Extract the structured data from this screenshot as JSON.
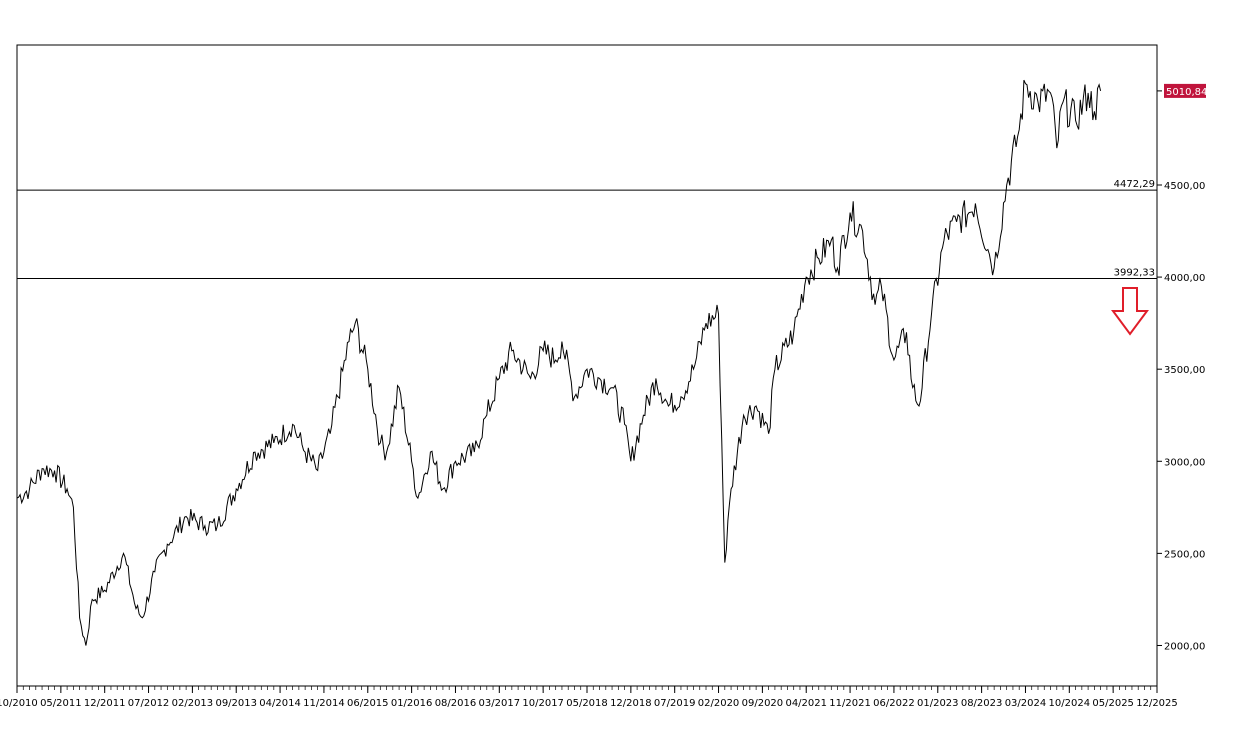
{
  "chart_data": {
    "type": "line",
    "title": "",
    "xlabel": "",
    "ylabel": "",
    "x_range": [
      "10/2010",
      "12/2025"
    ],
    "ylim": [
      1780,
      5260
    ],
    "y_ticks": [
      2000,
      2500,
      3000,
      3500,
      4000,
      4500
    ],
    "y_tick_labels": [
      "2000,00",
      "2500,00",
      "3000,00",
      "3500,00",
      "4000,00",
      "4500,00"
    ],
    "x_ticks": [
      {
        "label": "10/2010",
        "year": 2010,
        "month": 10
      },
      {
        "label": "05/2011",
        "year": 2011,
        "month": 5
      },
      {
        "label": "12/2011",
        "year": 2011,
        "month": 12
      },
      {
        "label": "07/2012",
        "year": 2012,
        "month": 7
      },
      {
        "label": "02/2013",
        "year": 2013,
        "month": 2
      },
      {
        "label": "09/2013",
        "year": 2013,
        "month": 9
      },
      {
        "label": "04/2014",
        "year": 2014,
        "month": 4
      },
      {
        "label": "11/2014",
        "year": 2014,
        "month": 11
      },
      {
        "label": "06/2015",
        "year": 2015,
        "month": 6
      },
      {
        "label": "01/2016",
        "year": 2016,
        "month": 1
      },
      {
        "label": "08/2016",
        "year": 2016,
        "month": 8
      },
      {
        "label": "03/2017",
        "year": 2017,
        "month": 3
      },
      {
        "label": "10/2017",
        "year": 2017,
        "month": 10
      },
      {
        "label": "05/2018",
        "year": 2018,
        "month": 5
      },
      {
        "label": "12/2018",
        "year": 2018,
        "month": 12
      },
      {
        "label": "07/2019",
        "year": 2019,
        "month": 7
      },
      {
        "label": "02/2020",
        "year": 2020,
        "month": 2
      },
      {
        "label": "09/2020",
        "year": 2020,
        "month": 9
      },
      {
        "label": "04/2021",
        "year": 2021,
        "month": 4
      },
      {
        "label": "11/2021",
        "year": 2021,
        "month": 11
      },
      {
        "label": "06/2022",
        "year": 2022,
        "month": 6
      },
      {
        "label": "01/2023",
        "year": 2023,
        "month": 1
      },
      {
        "label": "08/2023",
        "year": 2023,
        "month": 8
      },
      {
        "label": "03/2024",
        "year": 2024,
        "month": 3
      },
      {
        "label": "10/2024",
        "year": 2024,
        "month": 10
      },
      {
        "label": "05/2025",
        "year": 2025,
        "month": 5
      },
      {
        "label": "12/2025",
        "year": 2025,
        "month": 12
      }
    ],
    "series": [
      {
        "values": [
          {
            "d": "2010-10",
            "v": 2800
          },
          {
            "d": "2010-12",
            "v": 2850
          },
          {
            "d": "2011-02",
            "v": 2960
          },
          {
            "d": "2011-04",
            "v": 2950
          },
          {
            "d": "2011-06",
            "v": 2850
          },
          {
            "d": "2011-07",
            "v": 2750
          },
          {
            "d": "2011-08",
            "v": 2150
          },
          {
            "d": "2011-09",
            "v": 2000
          },
          {
            "d": "2011-10",
            "v": 2250
          },
          {
            "d": "2011-12",
            "v": 2300
          },
          {
            "d": "2012-03",
            "v": 2500
          },
          {
            "d": "2012-05",
            "v": 2200
          },
          {
            "d": "2012-06",
            "v": 2150
          },
          {
            "d": "2012-08",
            "v": 2400
          },
          {
            "d": "2012-10",
            "v": 2550
          },
          {
            "d": "2013-01",
            "v": 2700
          },
          {
            "d": "2013-04",
            "v": 2650
          },
          {
            "d": "2013-06",
            "v": 2650
          },
          {
            "d": "2013-09",
            "v": 2850
          },
          {
            "d": "2013-12",
            "v": 3050
          },
          {
            "d": "2014-03",
            "v": 3100
          },
          {
            "d": "2014-06",
            "v": 3200
          },
          {
            "d": "2014-08",
            "v": 3050
          },
          {
            "d": "2014-10",
            "v": 2950
          },
          {
            "d": "2014-12",
            "v": 3150
          },
          {
            "d": "2015-03",
            "v": 3650
          },
          {
            "d": "2015-04",
            "v": 3750
          },
          {
            "d": "2015-06",
            "v": 3500
          },
          {
            "d": "2015-08",
            "v": 3100
          },
          {
            "d": "2015-09",
            "v": 3050
          },
          {
            "d": "2015-11",
            "v": 3400
          },
          {
            "d": "2016-01",
            "v": 3000
          },
          {
            "d": "2016-02",
            "v": 2800
          },
          {
            "d": "2016-04",
            "v": 3050
          },
          {
            "d": "2016-06",
            "v": 2850
          },
          {
            "d": "2016-08",
            "v": 3000
          },
          {
            "d": "2016-11",
            "v": 3050
          },
          {
            "d": "2017-01",
            "v": 3250
          },
          {
            "d": "2017-03",
            "v": 3450
          },
          {
            "d": "2017-05",
            "v": 3600
          },
          {
            "d": "2017-08",
            "v": 3450
          },
          {
            "d": "2017-10",
            "v": 3600
          },
          {
            "d": "2017-12",
            "v": 3550
          },
          {
            "d": "2018-01",
            "v": 3650
          },
          {
            "d": "2018-03",
            "v": 3350
          },
          {
            "d": "2018-05",
            "v": 3500
          },
          {
            "d": "2018-07",
            "v": 3450
          },
          {
            "d": "2018-09",
            "v": 3400
          },
          {
            "d": "2018-11",
            "v": 3200
          },
          {
            "d": "2018-12",
            "v": 3000
          },
          {
            "d": "2019-02",
            "v": 3250
          },
          {
            "d": "2019-04",
            "v": 3450
          },
          {
            "d": "2019-06",
            "v": 3300
          },
          {
            "d": "2019-08",
            "v": 3350
          },
          {
            "d": "2019-10",
            "v": 3500
          },
          {
            "d": "2019-12",
            "v": 3750
          },
          {
            "d": "2020-02",
            "v": 3800
          },
          {
            "d": "2020-03",
            "v": 2450
          },
          {
            "d": "2020-04",
            "v": 2850
          },
          {
            "d": "2020-06",
            "v": 3250
          },
          {
            "d": "2020-08",
            "v": 3300
          },
          {
            "d": "2020-10",
            "v": 3150
          },
          {
            "d": "2020-11",
            "v": 3500
          },
          {
            "d": "2021-02",
            "v": 3700
          },
          {
            "d": "2021-04",
            "v": 4000
          },
          {
            "d": "2021-06",
            "v": 4100
          },
          {
            "d": "2021-08",
            "v": 4200
          },
          {
            "d": "2021-09",
            "v": 4050
          },
          {
            "d": "2021-11",
            "v": 4350
          },
          {
            "d": "2022-01",
            "v": 4250
          },
          {
            "d": "2022-03",
            "v": 3850
          },
          {
            "d": "2022-04",
            "v": 3950
          },
          {
            "d": "2022-06",
            "v": 3550
          },
          {
            "d": "2022-08",
            "v": 3700
          },
          {
            "d": "2022-09",
            "v": 3400
          },
          {
            "d": "2022-10",
            "v": 3300
          },
          {
            "d": "2022-12",
            "v": 3800
          },
          {
            "d": "2023-02",
            "v": 4200
          },
          {
            "d": "2023-04",
            "v": 4300
          },
          {
            "d": "2023-06",
            "v": 4350
          },
          {
            "d": "2023-07",
            "v": 4400
          },
          {
            "d": "2023-09",
            "v": 4150
          },
          {
            "d": "2023-10",
            "v": 4050
          },
          {
            "d": "2023-12",
            "v": 4500
          },
          {
            "d": "2024-02",
            "v": 4800
          },
          {
            "d": "2024-03",
            "v": 5050
          },
          {
            "d": "2024-05",
            "v": 4950
          },
          {
            "d": "2024-07",
            "v": 5000
          },
          {
            "d": "2024-08",
            "v": 4700
          },
          {
            "d": "2024-09",
            "v": 4950
          },
          {
            "d": "2024-11",
            "v": 4850
          },
          {
            "d": "2025-01",
            "v": 5000
          },
          {
            "d": "2025-02",
            "v": 4900
          },
          {
            "d": "2025-03",
            "v": 5010.84
          }
        ]
      }
    ],
    "annotations": {
      "current_price": {
        "value": 5010.84,
        "label": "5010,84",
        "color": "#c0143c"
      },
      "hlines": [
        {
          "value": 4472.29,
          "label": "4472,29"
        },
        {
          "value": 3992.33,
          "label": "3992,33"
        }
      ],
      "arrow": {
        "direction": "down",
        "color": "#e01e2a"
      }
    },
    "grid": false,
    "legend": "none"
  }
}
